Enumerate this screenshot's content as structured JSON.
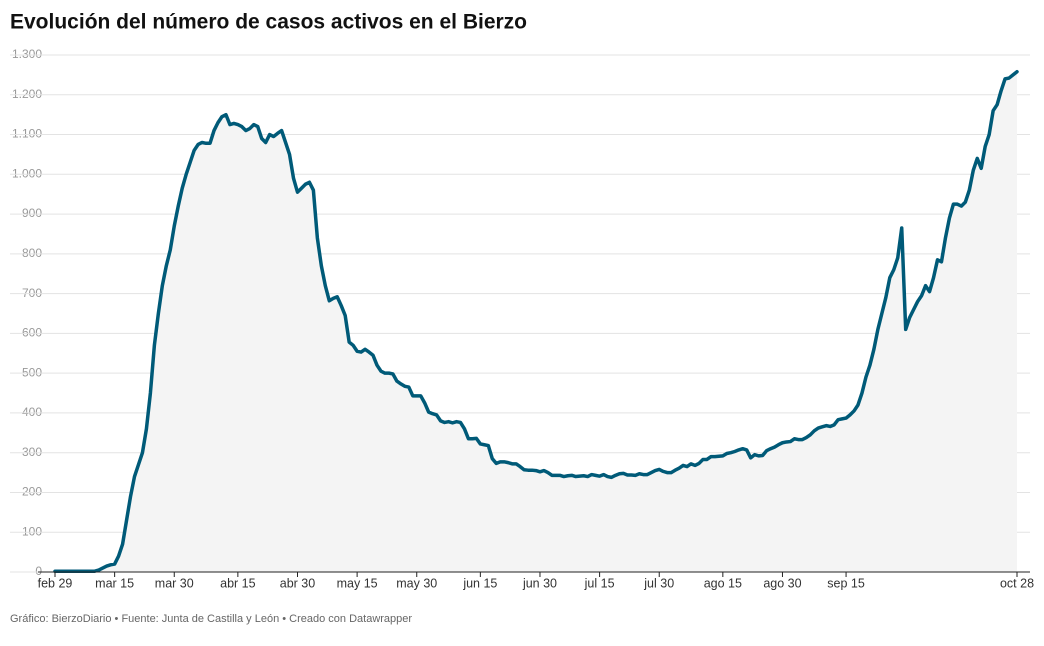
{
  "chart_data": {
    "type": "line",
    "title": "Evolución del número de casos activos en el Bierzo",
    "source": "Gráfico: BierzoDiario • Fuente: Junta de Castilla y León • Creado con Datawrapper",
    "x": [
      0,
      1,
      2,
      3,
      4,
      5,
      6,
      7,
      8,
      9,
      10,
      11,
      12,
      13,
      14,
      15,
      16,
      17,
      18,
      19,
      20,
      21,
      22,
      23,
      24,
      25,
      26,
      27,
      28,
      29,
      30,
      31,
      32,
      33,
      34,
      35,
      36,
      37,
      38,
      39,
      40,
      41,
      42,
      43,
      44,
      45,
      46,
      47,
      48,
      49,
      50,
      51,
      52,
      53,
      54,
      55,
      56,
      57,
      58,
      59,
      60,
      61,
      62,
      63,
      64,
      65,
      66,
      67,
      68,
      69,
      70,
      71,
      72,
      73,
      74,
      75,
      76,
      77,
      78,
      79,
      80,
      81,
      82,
      83,
      84,
      85,
      86,
      87,
      88,
      89,
      90,
      91,
      92,
      93,
      94,
      95,
      96,
      97,
      98,
      99,
      100,
      101,
      102,
      103,
      104,
      105,
      106,
      107,
      108,
      109,
      110,
      111,
      112,
      113,
      114,
      115,
      116,
      117,
      118,
      119,
      120,
      121,
      122,
      123,
      124,
      125,
      126,
      127,
      128,
      129,
      130,
      131,
      132,
      133,
      134,
      135,
      136,
      137,
      138,
      139,
      140,
      141,
      142,
      143,
      144,
      145,
      146,
      147,
      148,
      149,
      150,
      151,
      152,
      153,
      154,
      155,
      156,
      157,
      158,
      159,
      160,
      161,
      162,
      163,
      164,
      165,
      166,
      167,
      168,
      169,
      170,
      171,
      172,
      173,
      174,
      175,
      176,
      177,
      178,
      179,
      180,
      181,
      182,
      183,
      184,
      185,
      186,
      187,
      188,
      189,
      190,
      191,
      192,
      193,
      194,
      195,
      196,
      197,
      198,
      199,
      200,
      201,
      202,
      203,
      204,
      205,
      206,
      207,
      208,
      209,
      210,
      211,
      212,
      213,
      214,
      215,
      216,
      217,
      218,
      219,
      220,
      221,
      222,
      223,
      224,
      225,
      226,
      227,
      228,
      229,
      230,
      231,
      232,
      233,
      234,
      235,
      236,
      237,
      238,
      239,
      240,
      241,
      242
    ],
    "series": [
      {
        "color": "#005a78",
        "values": [
          2,
          2,
          2,
          2,
          2,
          2,
          2,
          2,
          2,
          2,
          2,
          5,
          10,
          15,
          18,
          20,
          40,
          70,
          130,
          190,
          240,
          270,
          300,
          360,
          450,
          570,
          650,
          720,
          770,
          810,
          870,
          920,
          965,
          1000,
          1030,
          1060,
          1075,
          1080,
          1078,
          1078,
          1110,
          1130,
          1145,
          1150,
          1125,
          1128,
          1125,
          1120,
          1110,
          1115,
          1125,
          1120,
          1090,
          1080,
          1100,
          1095,
          1103,
          1110,
          1080,
          1050,
          990,
          955,
          965,
          975,
          980,
          960,
          840,
          770,
          720,
          682,
          688,
          692,
          670,
          645,
          578,
          570,
          555,
          553,
          560,
          553,
          545,
          520,
          505,
          500,
          500,
          498,
          480,
          473,
          467,
          465,
          443,
          443,
          443,
          425,
          402,
          398,
          395,
          380,
          376,
          378,
          375,
          378,
          376,
          360,
          335,
          335,
          336,
          322,
          320,
          318,
          285,
          273,
          277,
          277,
          275,
          272,
          272,
          265,
          257,
          256,
          256,
          255,
          252,
          255,
          250,
          243,
          243,
          243,
          240,
          242,
          243,
          240,
          241,
          242,
          240,
          245,
          243,
          241,
          245,
          240,
          238,
          243,
          247,
          248,
          244,
          244,
          243,
          247,
          245,
          245,
          250,
          255,
          258,
          253,
          250,
          250,
          256,
          261,
          268,
          265,
          272,
          268,
          273,
          283,
          283,
          290,
          290,
          291,
          292,
          298,
          300,
          303,
          307,
          310,
          307,
          287,
          295,
          292,
          293,
          305,
          310,
          314,
          320,
          325,
          327,
          328,
          335,
          333,
          333,
          338,
          345,
          355,
          362,
          365,
          368,
          366,
          370,
          383,
          385,
          387,
          395,
          405,
          420,
          450,
          490,
          520,
          560,
          610,
          650,
          690,
          740,
          760,
          790,
          865,
          610,
          640,
          660,
          680,
          695,
          720,
          705,
          740,
          785,
          780,
          840,
          890,
          925,
          925,
          920,
          930,
          960,
          1010,
          1040,
          1015,
          1070,
          1100,
          1160,
          1175,
          1210,
          1240,
          1242,
          1250,
          1258
        ]
      }
    ],
    "area_color": "#f4f4f4",
    "xlim": [
      0,
      242
    ],
    "xticks": [
      {
        "value": 0,
        "label": "feb 29"
      },
      {
        "value": 15,
        "label": "mar 15"
      },
      {
        "value": 30,
        "label": "mar 30"
      },
      {
        "value": 46,
        "label": "abr 15"
      },
      {
        "value": 61,
        "label": "abr 30"
      },
      {
        "value": 76,
        "label": "may 15"
      },
      {
        "value": 91,
        "label": "may 30"
      },
      {
        "value": 107,
        "label": "jun 15"
      },
      {
        "value": 122,
        "label": "jun 30"
      },
      {
        "value": 137,
        "label": "jul 15"
      },
      {
        "value": 152,
        "label": "jul 30"
      },
      {
        "value": 168,
        "label": "ago 15"
      },
      {
        "value": 183,
        "label": "ago 30"
      },
      {
        "value": 199,
        "label": "sep 15"
      },
      {
        "value": 242,
        "label": "oct 28"
      }
    ],
    "ylim": [
      0,
      1300
    ],
    "yticks": [
      0,
      100,
      200,
      300,
      400,
      500,
      600,
      700,
      800,
      900,
      {
        "value": 1000,
        "label": "1.000"
      },
      {
        "value": 1100,
        "label": "1.100"
      },
      {
        "value": 1200,
        "label": "1.200"
      },
      {
        "value": 1300,
        "label": "1.300"
      }
    ],
    "grid": true
  }
}
